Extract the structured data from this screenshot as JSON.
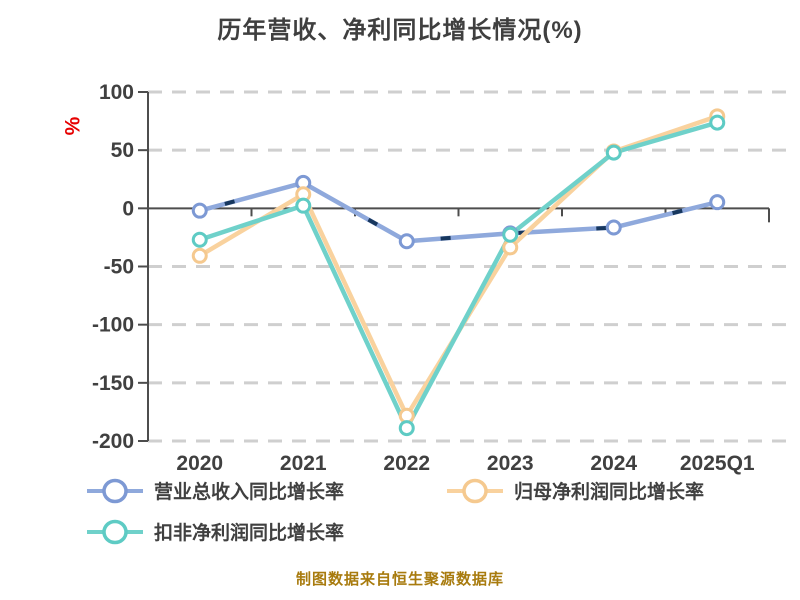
{
  "title": "历年营收、净利同比增长情况(%)",
  "footer": {
    "text": "制图数据来自恒生聚源数据库"
  },
  "chart_data": {
    "type": "line",
    "title": "历年营收、净利同比增长情况(%)",
    "xlabel": "",
    "ylabel": "%",
    "ylabel_color": "#e60000",
    "categories": [
      "2020",
      "2021",
      "2022",
      "2023",
      "2024",
      "2025Q1"
    ],
    "series": [
      {
        "name": "营业总收入同比增长率",
        "values": [
          -2.0,
          21.9,
          -28.3,
          -21.5,
          -16.5,
          5.3
        ],
        "color": "#8fa9dc",
        "marker_ring": "#7d99d4",
        "dash_overlay_color": "#17375e"
      },
      {
        "name": "归母净利润同比增长率",
        "values": [
          -40.8,
          12.1,
          -178.3,
          -33.6,
          48.9,
          79.1
        ],
        "color": "#f9d29e",
        "marker_ring": "#f5c98f"
      },
      {
        "name": "扣非净利润同比增长率",
        "values": [
          -27.0,
          2.3,
          -188.9,
          -22.7,
          47.9,
          73.7
        ],
        "color": "#6fd1ca",
        "marker_ring": "#5ecbc4"
      }
    ],
    "ylim": [
      -200,
      100
    ],
    "yticks": [
      100,
      50,
      0,
      -50,
      -100,
      -150,
      -200
    ],
    "grid": "horizontal dashed, solid dark zero line",
    "legend_position": "bottom-left",
    "legend_rows": [
      [
        0,
        1
      ],
      [
        2
      ]
    ]
  },
  "style_colors": {
    "axis_line": "#4d4d4d",
    "gridline": "#cfcfcf",
    "tick_label": "#404040",
    "title_text": "#3f3f3f",
    "marker_fill": "#ffffff"
  }
}
